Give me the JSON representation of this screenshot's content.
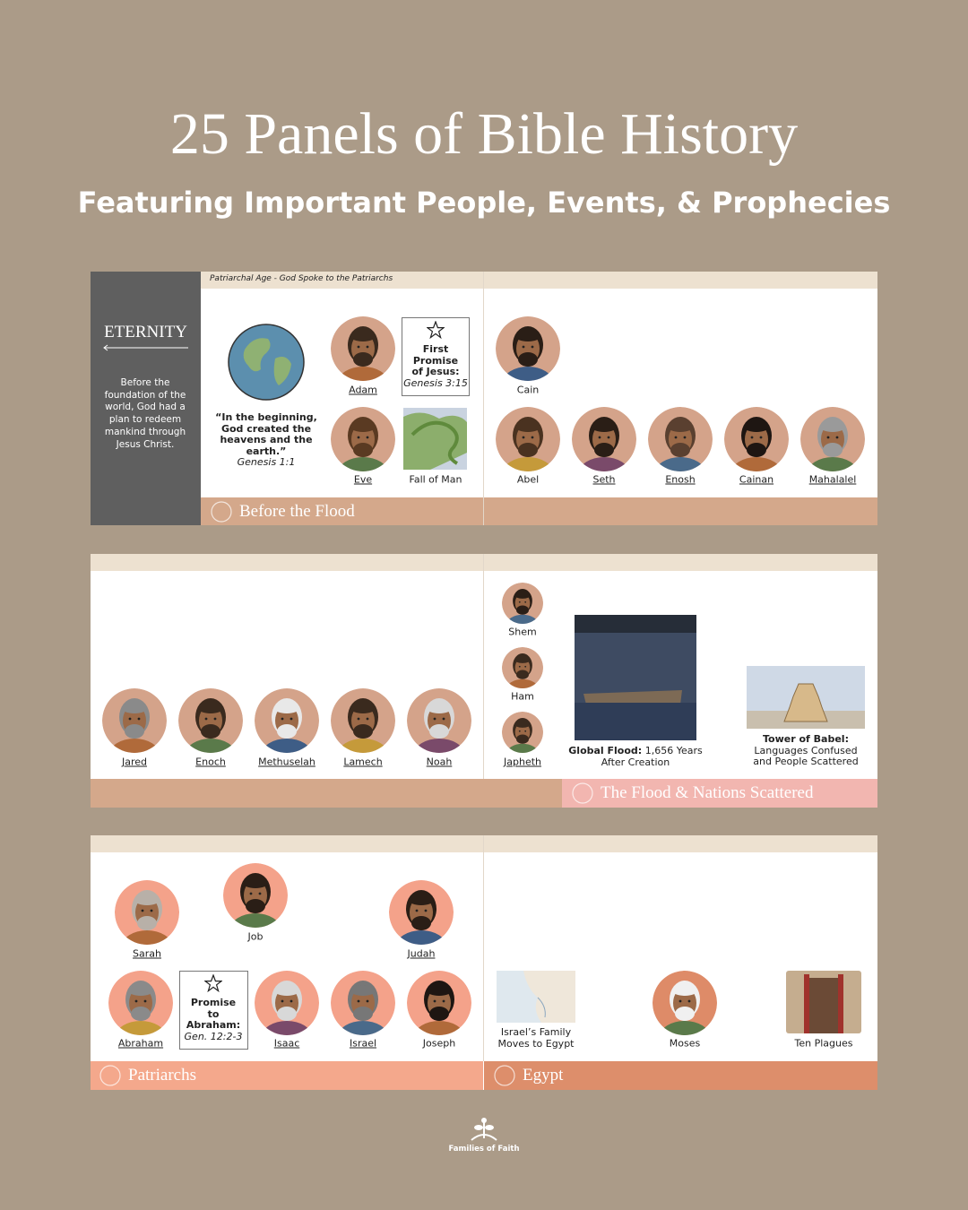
{
  "header": {
    "title": "25 Panels of Bible History",
    "subtitle": "Featuring Important People, Events, & Prophecies"
  },
  "row1": {
    "age_label": "Patriarchal Age - God Spoke to the Patriarchs",
    "eternity": {
      "title": "ETERNITY",
      "text": "Before the foundation of the world, God had a plan to redeem mankind through Jesus Christ."
    },
    "creation": {
      "quote": "“In the beginning, God created the heavens and the earth.”",
      "reference": "Genesis 1:1"
    },
    "promise": {
      "title": "First Promise of Jesus:",
      "reference": "Genesis 3:15"
    },
    "people": [
      "Adam",
      "Eve",
      "Cain",
      "Abel",
      "Seth",
      "Enosh",
      "Cainan",
      "Mahalalel"
    ],
    "event": "Fall of Man",
    "sections": [
      "Before the Flood"
    ]
  },
  "row2": {
    "people": [
      "Jared",
      "Enoch",
      "Methuselah",
      "Lamech",
      "Noah",
      "Shem",
      "Ham",
      "Japheth"
    ],
    "flood": {
      "title": "Global Flood:",
      "text": "1,656 Years After Creation"
    },
    "babel": {
      "title": "Tower of Babel:",
      "text": "Languages Confused and People Scattered"
    },
    "sections": [
      "The Flood & Nations Scattered"
    ]
  },
  "row3": {
    "people": [
      "Sarah",
      "Job",
      "Judah",
      "Abraham",
      "Isaac",
      "Israel",
      "Joseph",
      "Moses"
    ],
    "promise": {
      "title": "Promise to Abraham:",
      "reference": "Gen. 12:2-3"
    },
    "events": [
      "Israel’s Family Moves to Egypt",
      "Ten Plagues"
    ],
    "sections": [
      "Patriarchs",
      "Egypt"
    ]
  },
  "footer": {
    "brand": "Families of Faith"
  }
}
